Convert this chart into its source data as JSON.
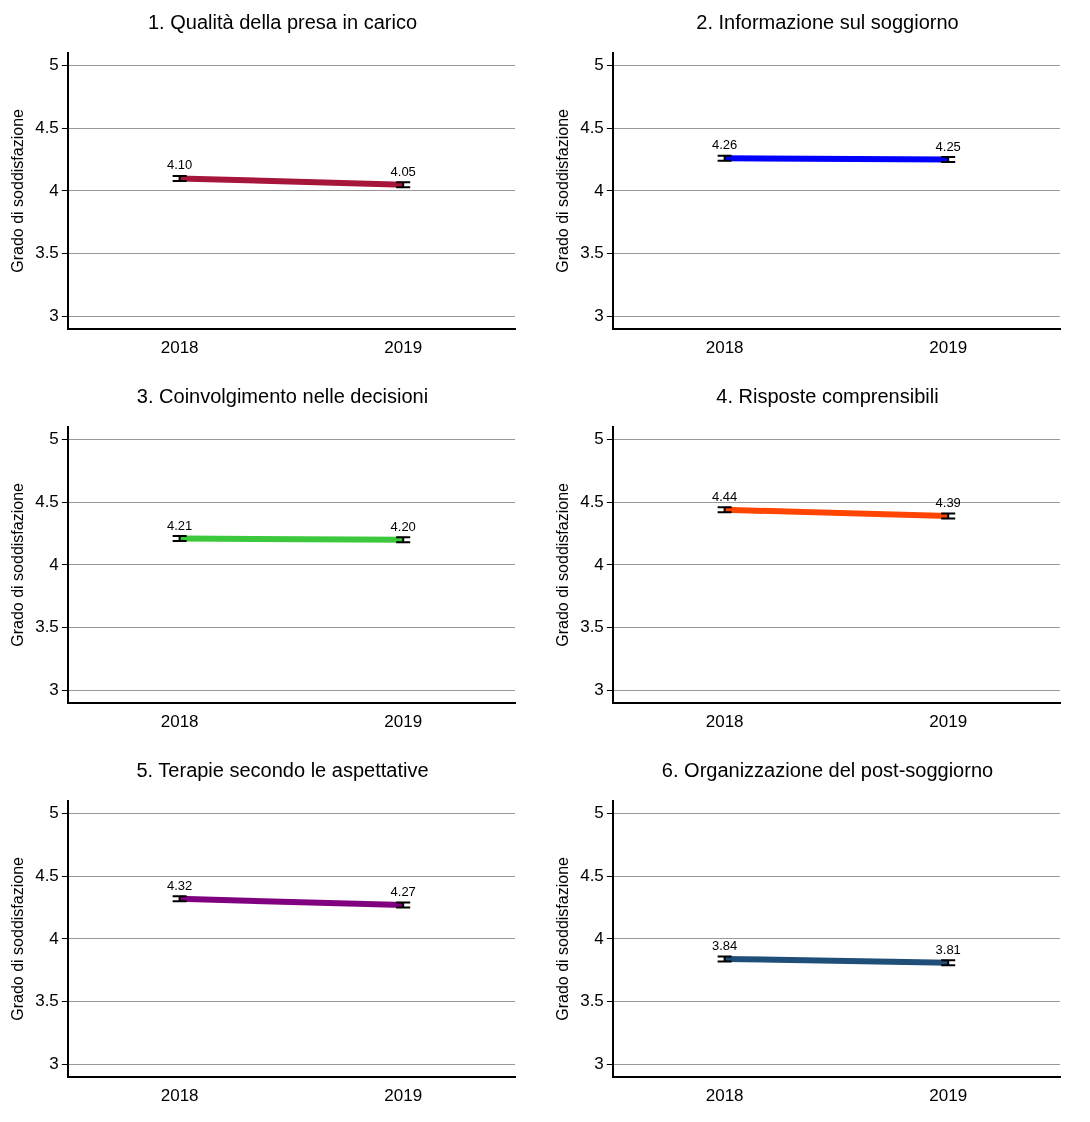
{
  "chart_data": [
    {
      "type": "line",
      "title": "1. Qualità della presa in carico",
      "ylabel": "Grado di soddisfazione",
      "categories": [
        "2018",
        "2019"
      ],
      "series": [
        {
          "color": "#a6163a",
          "values": [
            4.1,
            4.05
          ],
          "errors": [
            0.02,
            0.02
          ],
          "value_labels": [
            "4.10",
            "4.05"
          ]
        }
      ],
      "ylim": [
        2.9,
        5.1
      ],
      "yticks": [
        3,
        3.5,
        4,
        4.5,
        5
      ],
      "grid": "y",
      "legend": false,
      "marker": "none"
    },
    {
      "type": "line",
      "title": "2. Informazione sul soggiorno",
      "ylabel": "Grado di soddisfazione",
      "categories": [
        "2018",
        "2019"
      ],
      "series": [
        {
          "color": "#0000ff",
          "values": [
            4.26,
            4.25
          ],
          "errors": [
            0.02,
            0.02
          ],
          "value_labels": [
            "4.26",
            "4.25"
          ]
        }
      ],
      "ylim": [
        2.9,
        5.1
      ],
      "yticks": [
        3,
        3.5,
        4,
        4.5,
        5
      ],
      "grid": "y",
      "legend": false,
      "marker": "none"
    },
    {
      "type": "line",
      "title": "3. Coinvolgimento nelle decisioni",
      "ylabel": "Grado di soddisfazione",
      "categories": [
        "2018",
        "2019"
      ],
      "series": [
        {
          "color": "#3cc83c",
          "values": [
            4.21,
            4.2
          ],
          "errors": [
            0.02,
            0.02
          ],
          "value_labels": [
            "4.21",
            "4.20"
          ]
        }
      ],
      "ylim": [
        2.9,
        5.1
      ],
      "yticks": [
        3,
        3.5,
        4,
        4.5,
        5
      ],
      "grid": "y",
      "legend": false,
      "marker": "none"
    },
    {
      "type": "line",
      "title": "4. Risposte comprensibili",
      "ylabel": "Grado di soddisfazione",
      "categories": [
        "2018",
        "2019"
      ],
      "series": [
        {
          "color": "#ff4500",
          "values": [
            4.44,
            4.39
          ],
          "errors": [
            0.02,
            0.02
          ],
          "value_labels": [
            "4.44",
            "4.39"
          ]
        }
      ],
      "ylim": [
        2.9,
        5.1
      ],
      "yticks": [
        3,
        3.5,
        4,
        4.5,
        5
      ],
      "grid": "y",
      "legend": false,
      "marker": "none"
    },
    {
      "type": "line",
      "title": "5. Terapie secondo le aspettative",
      "ylabel": "Grado di soddisfazione",
      "categories": [
        "2018",
        "2019"
      ],
      "series": [
        {
          "color": "#800080",
          "values": [
            4.32,
            4.27
          ],
          "errors": [
            0.02,
            0.02
          ],
          "value_labels": [
            "4.32",
            "4.27"
          ]
        }
      ],
      "ylim": [
        2.9,
        5.1
      ],
      "yticks": [
        3,
        3.5,
        4,
        4.5,
        5
      ],
      "grid": "y",
      "legend": false,
      "marker": "none"
    },
    {
      "type": "line",
      "title": "6. Organizzazione del post-soggiorno",
      "ylabel": "Grado di soddisfazione",
      "categories": [
        "2018",
        "2019"
      ],
      "series": [
        {
          "color": "#1f4e79",
          "values": [
            3.84,
            3.81
          ],
          "errors": [
            0.02,
            0.02
          ],
          "value_labels": [
            "3.84",
            "3.81"
          ]
        }
      ],
      "ylim": [
        2.9,
        5.1
      ],
      "yticks": [
        3,
        3.5,
        4,
        4.5,
        5
      ],
      "grid": "y",
      "legend": false,
      "marker": "none"
    }
  ]
}
